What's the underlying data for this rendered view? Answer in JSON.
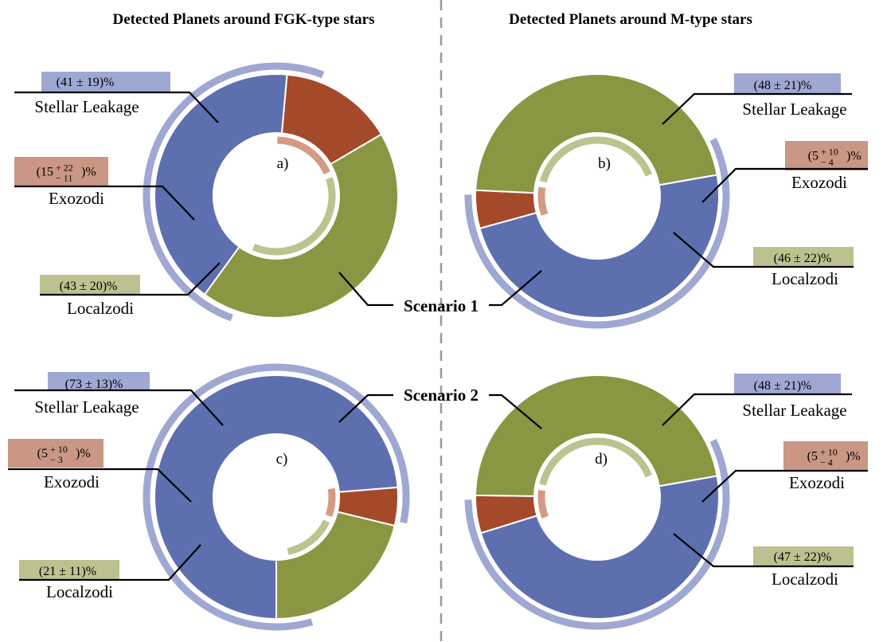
{
  "titles": {
    "left": "Detected Planets around FGK-type stars",
    "right": "Detected Planets around M-type stars"
  },
  "scenarios": {
    "s1": "Scenario 1",
    "s2": "Scenario 2"
  },
  "colors": {
    "stellar_leakage": "#5E6FB0",
    "stellar_leakage_light": "#9EA8D2",
    "exozodi": "#A44A2B",
    "exozodi_box": "#C99783",
    "exozodi_light": "#D49A84",
    "localzodi": "#8A9642",
    "localzodi_box": "#BCC18F",
    "localzodi_light": "#BCC38E"
  },
  "chart_data": [
    {
      "type": "pie",
      "panel": "a)",
      "group": "Detected Planets around FGK-type stars",
      "scenario": "Scenario 1",
      "categories": [
        "Stellar Leakage",
        "Exozodi",
        "Localzodi"
      ],
      "values": [
        41,
        15,
        43
      ],
      "value_labels": {
        "stellar": "(41 ± 19)%",
        "exozodi_base": "(15",
        "exozodi_up": "+ 22",
        "exozodi_down": "− 11",
        "exozodi_tail": ")%",
        "localzodi": "(43 ± 20)%"
      },
      "labels": {
        "stellar": "Stellar Leakage",
        "exozodi": "Exozodi",
        "localzodi": "Localzodi"
      }
    },
    {
      "type": "pie",
      "panel": "b)",
      "group": "Detected Planets around M-type stars",
      "scenario": "Scenario 1",
      "categories": [
        "Stellar Leakage",
        "Exozodi",
        "Localzodi"
      ],
      "values": [
        48,
        5,
        46
      ],
      "value_labels": {
        "stellar": "(48 ± 21)%",
        "exozodi_base": "(5",
        "exozodi_up": "+ 10",
        "exozodi_down": "− 4",
        "exozodi_tail": ")%",
        "localzodi": "(46 ± 22)%"
      },
      "labels": {
        "stellar": "Stellar Leakage",
        "exozodi": "Exozodi",
        "localzodi": "Localzodi"
      }
    },
    {
      "type": "pie",
      "panel": "c)",
      "group": "Detected Planets around FGK-type stars",
      "scenario": "Scenario 2",
      "categories": [
        "Stellar Leakage",
        "Exozodi",
        "Localzodi"
      ],
      "values": [
        73,
        5,
        21
      ],
      "value_labels": {
        "stellar": "(73 ± 13)%",
        "exozodi_base": "(5",
        "exozodi_up": "+ 10",
        "exozodi_down": "− 3",
        "exozodi_tail": ")%",
        "localzodi": "(21 ± 11)%"
      },
      "labels": {
        "stellar": "Stellar Leakage",
        "exozodi": "Exozodi",
        "localzodi": "Localzodi"
      }
    },
    {
      "type": "pie",
      "panel": "d)",
      "group": "Detected Planets around M-type stars",
      "scenario": "Scenario 2",
      "categories": [
        "Stellar Leakage",
        "Exozodi",
        "Localzodi"
      ],
      "values": [
        48,
        5,
        47
      ],
      "value_labels": {
        "stellar": "(48 ± 21)%",
        "exozodi_base": "(5",
        "exozodi_up": "+ 10",
        "exozodi_down": "− 4",
        "exozodi_tail": ")%",
        "localzodi": "(47 ± 22)%"
      },
      "labels": {
        "stellar": "Stellar Leakage",
        "exozodi": "Exozodi",
        "localzodi": "Localzodi"
      }
    }
  ]
}
